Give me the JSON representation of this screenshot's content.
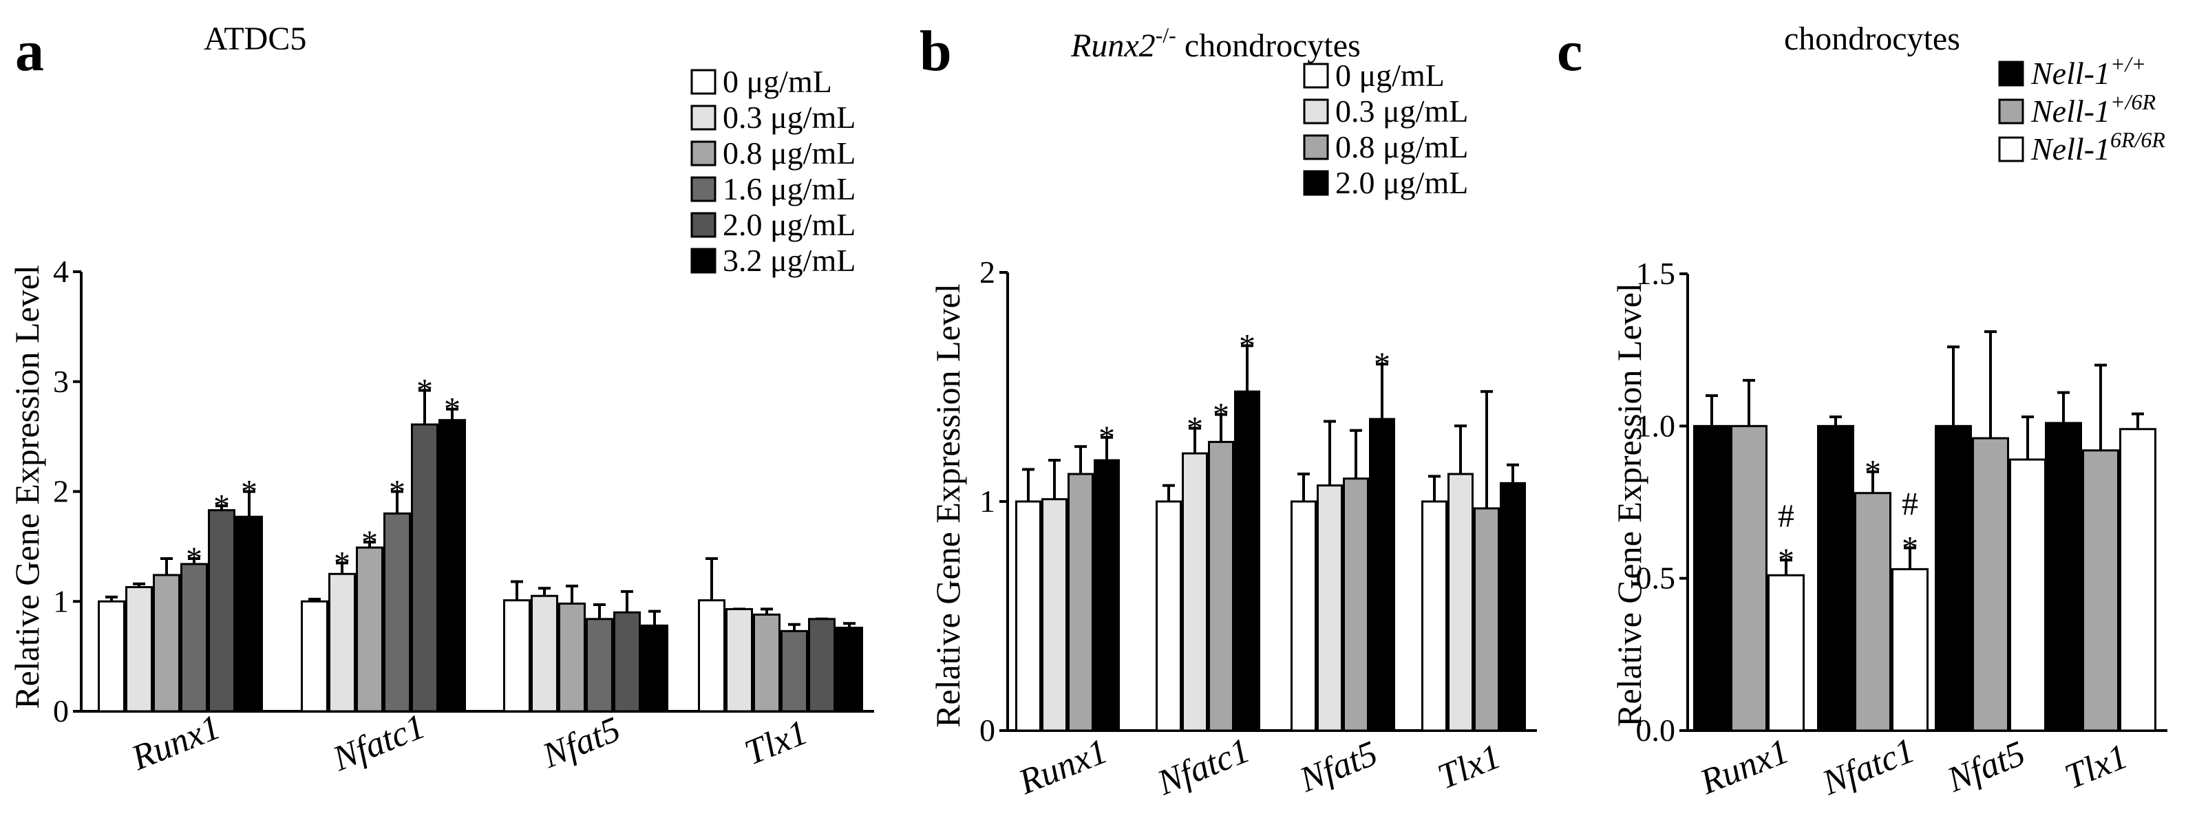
{
  "colors": {
    "white": "#ffffff",
    "lightgray": "#e2e2e2",
    "midgray": "#a6a6a6",
    "darkgray": "#6a6a6a",
    "charcoal": "#555555",
    "black": "#000000"
  },
  "chart_data": [
    {
      "panel": "a",
      "type": "bar",
      "title": "ATDC5",
      "xlabel": "",
      "ylabel": "Relative Gene Expression Level",
      "ylim": [
        0,
        4
      ],
      "yticks": [
        "0",
        "1",
        "2",
        "3",
        "4"
      ],
      "categories": [
        "Runx1",
        "Nfatc1",
        "Nfat5",
        "Tlx1"
      ],
      "series": [
        {
          "name": "0 μg/mL",
          "color": "#ffffff",
          "values": [
            1.0,
            1.0,
            1.01,
            1.01
          ],
          "errors": [
            0.04,
            0.02,
            0.17,
            0.38
          ]
        },
        {
          "name": "0.3 μg/mL",
          "color": "#e2e2e2",
          "values": [
            1.13,
            1.25,
            1.05,
            0.93
          ],
          "errors": [
            0.03,
            0.1,
            0.07,
            0.0
          ]
        },
        {
          "name": "0.8 μg/mL",
          "color": "#a6a6a6",
          "values": [
            1.24,
            1.49,
            0.98,
            0.88
          ],
          "errors": [
            0.15,
            0.05,
            0.16,
            0.05
          ]
        },
        {
          "name": "1.6 μg/mL",
          "color": "#6a6a6a",
          "values": [
            1.34,
            1.8,
            0.84,
            0.73
          ],
          "errors": [
            0.05,
            0.2,
            0.13,
            0.06
          ]
        },
        {
          "name": "2.0 μg/mL",
          "color": "#555555",
          "values": [
            1.83,
            2.61,
            0.9,
            0.84
          ],
          "errors": [
            0.04,
            0.31,
            0.19,
            0.0
          ]
        },
        {
          "name": "3.2 μg/mL",
          "color": "#000000",
          "values": [
            1.77,
            2.65,
            0.78,
            0.76
          ],
          "errors": [
            0.23,
            0.1,
            0.13,
            0.04
          ]
        }
      ],
      "significance": [
        {
          "category": 0,
          "series": 3,
          "label": "*"
        },
        {
          "category": 0,
          "series": 4,
          "label": "*"
        },
        {
          "category": 0,
          "series": 5,
          "label": "*"
        },
        {
          "category": 1,
          "series": 1,
          "label": "*"
        },
        {
          "category": 1,
          "series": 2,
          "label": "*"
        },
        {
          "category": 1,
          "series": 3,
          "label": "*"
        },
        {
          "category": 1,
          "series": 4,
          "label": "*"
        },
        {
          "category": 1,
          "series": 5,
          "label": "*"
        }
      ],
      "legend_position": "top-right"
    },
    {
      "panel": "b",
      "type": "bar",
      "title_italic": "Runx2",
      "title_superscript": "-/-",
      "title_rest": " chondrocytes",
      "xlabel": "",
      "ylabel": "Relative Gene Expression Level",
      "ylim": [
        0,
        2
      ],
      "yticks": [
        "0",
        "1",
        "2"
      ],
      "categories": [
        "Runx1",
        "Nfatc1",
        "Nfat5",
        "Tlx1"
      ],
      "series": [
        {
          "name": "0 μg/mL",
          "color": "#ffffff",
          "values": [
            1.0,
            1.0,
            1.0,
            1.0
          ],
          "errors": [
            0.14,
            0.07,
            0.12,
            0.11
          ]
        },
        {
          "name": "0.3 μg/mL",
          "color": "#e2e2e2",
          "values": [
            1.01,
            1.21,
            1.07,
            1.12
          ],
          "errors": [
            0.17,
            0.11,
            0.28,
            0.21
          ]
        },
        {
          "name": "0.8 μg/mL",
          "color": "#a6a6a6",
          "values": [
            1.12,
            1.26,
            1.1,
            0.97
          ],
          "errors": [
            0.12,
            0.12,
            0.21,
            0.51
          ]
        },
        {
          "name": "2.0 μg/mL",
          "color": "#000000",
          "values": [
            1.18,
            1.48,
            1.36,
            1.08
          ],
          "errors": [
            0.1,
            0.2,
            0.24,
            0.08
          ]
        }
      ],
      "significance": [
        {
          "category": 0,
          "series": 3,
          "label": "*"
        },
        {
          "category": 1,
          "series": 1,
          "label": "*"
        },
        {
          "category": 1,
          "series": 2,
          "label": "*"
        },
        {
          "category": 1,
          "series": 3,
          "label": "*"
        },
        {
          "category": 2,
          "series": 3,
          "label": "*"
        }
      ],
      "legend_position": "top-right"
    },
    {
      "panel": "c",
      "type": "bar",
      "title": "chondrocytes",
      "xlabel": "",
      "ylabel": "Relative Gene Expression Level",
      "ylim": [
        0,
        1.5
      ],
      "yticks": [
        "0.0",
        "0.5",
        "1.0",
        "1.5"
      ],
      "categories": [
        "Runx1",
        "Nfatc1",
        "Nfat5",
        "Tlx1"
      ],
      "series": [
        {
          "name": "Nell-1",
          "superscript": "+/+",
          "color": "#000000",
          "values": [
            1.0,
            1.0,
            1.0,
            1.01
          ],
          "errors": [
            0.1,
            0.03,
            0.26,
            0.1
          ]
        },
        {
          "name": "Nell-1",
          "superscript": "+/6R",
          "color": "#a6a6a6",
          "values": [
            1.0,
            0.78,
            0.96,
            0.92
          ],
          "errors": [
            0.15,
            0.07,
            0.35,
            0.28
          ]
        },
        {
          "name": "Nell-1",
          "superscript": "6R/6R",
          "color": "#ffffff",
          "values": [
            0.51,
            0.53,
            0.89,
            0.99
          ],
          "errors": [
            0.05,
            0.07,
            0.14,
            0.05
          ]
        }
      ],
      "significance": [
        {
          "category": 0,
          "series": 2,
          "label": "*"
        },
        {
          "category": 0,
          "series": 2,
          "label": "#"
        },
        {
          "category": 1,
          "series": 1,
          "label": "*"
        },
        {
          "category": 1,
          "series": 2,
          "label": "*"
        },
        {
          "category": 1,
          "series": 2,
          "label": "#"
        }
      ],
      "legend_position": "top-right"
    }
  ]
}
